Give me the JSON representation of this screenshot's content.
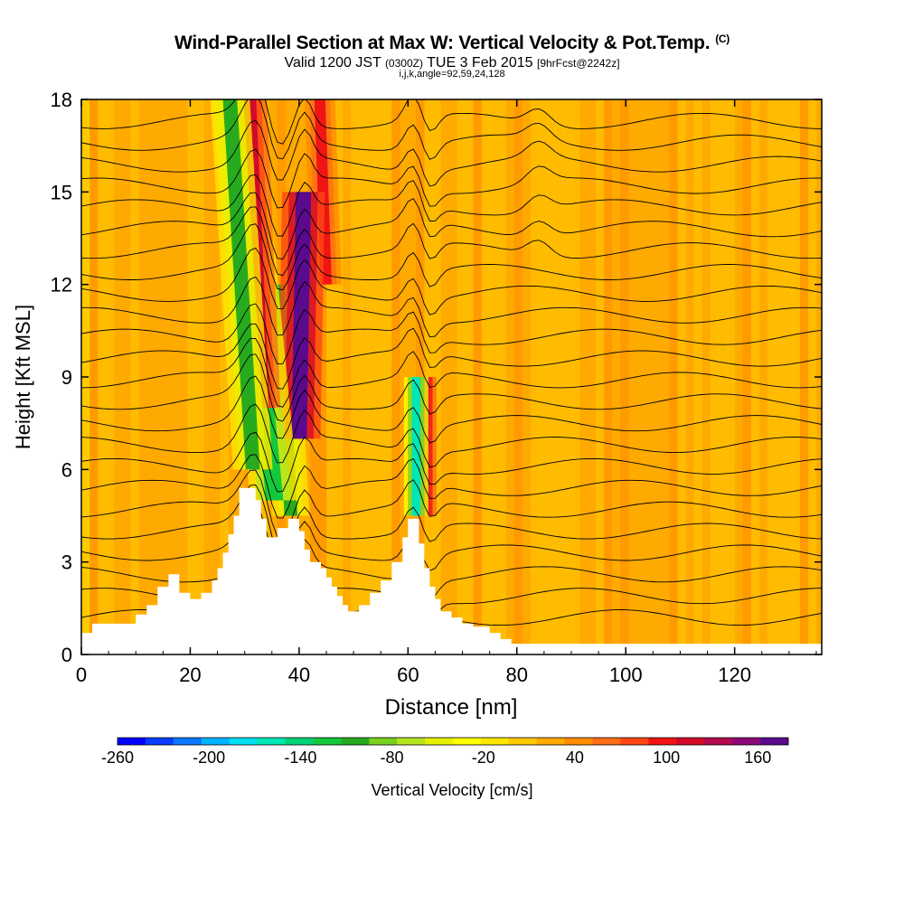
{
  "header": {
    "title": "Wind-Parallel Section at Max W: Vertical Velocity & Pot.Temp.",
    "copyright": "(C)",
    "valid_prefix": "Valid 1200 JST",
    "valid_utc": "(0300Z)",
    "valid_date": "TUE 3 Feb 2015",
    "forecast": "[9hrFcst@2242z]",
    "indices": "i,j,k,angle=92,59,24,128"
  },
  "chart_data": {
    "type": "heatmap",
    "title": "Wind-Parallel Section at Max W: Vertical Velocity & Pot.Temp.",
    "xlabel": "Distance [nm]",
    "ylabel": "Height [Kft MSL]",
    "xlim": [
      0,
      136
    ],
    "ylim": [
      0,
      18
    ],
    "xticks": [
      "0",
      "20",
      "40",
      "60",
      "80",
      "100",
      "120"
    ],
    "yticks": [
      "0",
      "3",
      "6",
      "9",
      "12",
      "15",
      "18"
    ],
    "colorbar": {
      "label": "Vertical Velocity [cm/s]",
      "ticks": [
        "-260",
        "-200",
        "-140",
        "-80",
        "-20",
        "40",
        "100",
        "160"
      ],
      "tick_values": [
        -260,
        -200,
        -140,
        -80,
        -20,
        40,
        100,
        160
      ],
      "range": [
        -260,
        180
      ],
      "colors": [
        "#0000ff",
        "#0a3cff",
        "#0a78ff",
        "#00b4ff",
        "#00e0f0",
        "#00e6b4",
        "#00d278",
        "#14c83c",
        "#28aa1e",
        "#78d21e",
        "#b4e61e",
        "#e6f000",
        "#ffff00",
        "#ffe600",
        "#ffc800",
        "#ffaa00",
        "#ff8c00",
        "#ff6e14",
        "#ff4614",
        "#f01414",
        "#d20a28",
        "#b40a50",
        "#8c0a78",
        "#5a0a8c"
      ]
    },
    "terrain_kft": [
      [
        0,
        0.7
      ],
      [
        2,
        0.7
      ],
      [
        2,
        1.0
      ],
      [
        10,
        1.0
      ],
      [
        10,
        1.3
      ],
      [
        12,
        1.3
      ],
      [
        12,
        1.6
      ],
      [
        14,
        1.6
      ],
      [
        14,
        2.2
      ],
      [
        16,
        2.2
      ],
      [
        16,
        2.6
      ],
      [
        18,
        2.6
      ],
      [
        18,
        2.0
      ],
      [
        20,
        2.0
      ],
      [
        20,
        1.8
      ],
      [
        22,
        1.8
      ],
      [
        22,
        2.0
      ],
      [
        24,
        2.0
      ],
      [
        24,
        2.4
      ],
      [
        25,
        2.4
      ],
      [
        25,
        2.8
      ],
      [
        26,
        2.8
      ],
      [
        26,
        3.3
      ],
      [
        27,
        3.3
      ],
      [
        27,
        3.9
      ],
      [
        28,
        3.9
      ],
      [
        28,
        4.5
      ],
      [
        29,
        4.5
      ],
      [
        29,
        5.4
      ],
      [
        32,
        5.4
      ],
      [
        32,
        5.0
      ],
      [
        33,
        5.0
      ],
      [
        33,
        4.4
      ],
      [
        34,
        4.4
      ],
      [
        34,
        3.8
      ],
      [
        36,
        3.8
      ],
      [
        36,
        4.1
      ],
      [
        38,
        4.1
      ],
      [
        38,
        4.4
      ],
      [
        40,
        4.4
      ],
      [
        40,
        4.0
      ],
      [
        41,
        4.0
      ],
      [
        41,
        3.4
      ],
      [
        42,
        3.4
      ],
      [
        42,
        3.0
      ],
      [
        44,
        3.0
      ],
      [
        44,
        2.8
      ],
      [
        45,
        2.8
      ],
      [
        45,
        2.5
      ],
      [
        46,
        2.5
      ],
      [
        46,
        2.2
      ],
      [
        47,
        2.2
      ],
      [
        47,
        1.9
      ],
      [
        48,
        1.9
      ],
      [
        48,
        1.6
      ],
      [
        49,
        1.6
      ],
      [
        49,
        1.4
      ],
      [
        51,
        1.4
      ],
      [
        51,
        1.6
      ],
      [
        53,
        1.6
      ],
      [
        53,
        2.0
      ],
      [
        55,
        2.0
      ],
      [
        55,
        2.4
      ],
      [
        57,
        2.4
      ],
      [
        57,
        3.0
      ],
      [
        59,
        3.0
      ],
      [
        59,
        3.8
      ],
      [
        60,
        3.8
      ],
      [
        60,
        4.4
      ],
      [
        62,
        4.4
      ],
      [
        62,
        3.6
      ],
      [
        63,
        3.6
      ],
      [
        63,
        2.8
      ],
      [
        64,
        2.8
      ],
      [
        64,
        2.2
      ],
      [
        65,
        2.2
      ],
      [
        65,
        1.8
      ],
      [
        66,
        1.8
      ],
      [
        66,
        1.4
      ],
      [
        68,
        1.4
      ],
      [
        68,
        1.2
      ],
      [
        70,
        1.2
      ],
      [
        70,
        1.0
      ],
      [
        72,
        1.0
      ],
      [
        72,
        0.9
      ],
      [
        75,
        0.9
      ],
      [
        75,
        0.7
      ],
      [
        77,
        0.7
      ],
      [
        77,
        0.5
      ],
      [
        79,
        0.5
      ],
      [
        79,
        0.35
      ],
      [
        136,
        0.35
      ]
    ],
    "updraft_bands": [
      {
        "x": 31.5,
        "y0": 6,
        "y1": 18,
        "tilt": 0.35,
        "w": 1.3,
        "value": -100
      },
      {
        "x": 33.5,
        "y0": 8,
        "y1": 18,
        "tilt": 0.25,
        "w": 1.1,
        "value": 120
      },
      {
        "x": 35.5,
        "y0": 5,
        "y1": 18,
        "tilt": 0.55,
        "w": 1.6,
        "value": -130
      },
      {
        "x": 40.0,
        "y0": 7,
        "y1": 15,
        "tilt": -0.1,
        "w": 1.4,
        "value": 170
      },
      {
        "x": 38.5,
        "y0": 4.5,
        "y1": 12,
        "tilt": 0.3,
        "w": 1.2,
        "value": -110
      },
      {
        "x": 61.5,
        "y0": 4.5,
        "y1": 9,
        "tilt": 0.0,
        "w": 0.8,
        "value": -160
      },
      {
        "x": 63.0,
        "y0": 4.5,
        "y1": 9,
        "tilt": 0.0,
        "w": 0.8,
        "value": 140
      },
      {
        "x": 45.0,
        "y0": 12,
        "y1": 18,
        "tilt": 0.2,
        "w": 1.0,
        "value": 90
      }
    ],
    "theta_contour_count": 24
  }
}
